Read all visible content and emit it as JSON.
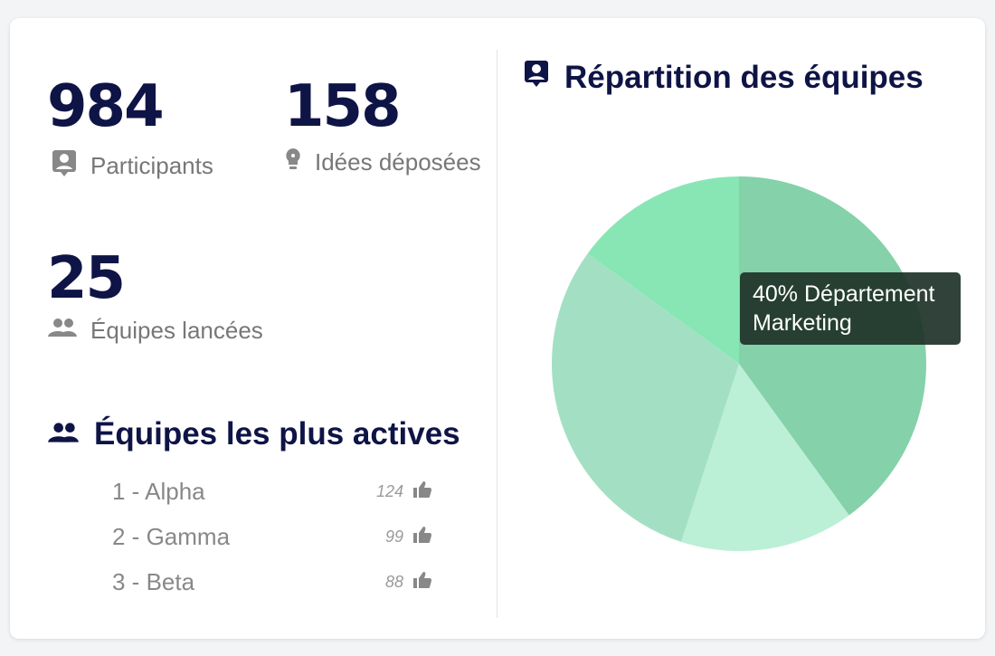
{
  "stats": {
    "participants": {
      "value": "984",
      "label": "Participants",
      "icon": "person-badge-icon"
    },
    "ideas": {
      "value": "158",
      "label": "Idées déposées",
      "icon": "lightbulb-icon"
    },
    "teams": {
      "value": "25",
      "label": "Équipes lancées",
      "icon": "group-icon"
    }
  },
  "active_teams": {
    "title": "Équipes les plus actives",
    "icon": "group-icon",
    "items": [
      {
        "name": "1 - Alpha",
        "votes": "124",
        "icon": "thumb-up-icon"
      },
      {
        "name": "2 - Gamma",
        "votes": "99",
        "icon": "thumb-up-icon"
      },
      {
        "name": "3 - Beta",
        "votes": "88",
        "icon": "thumb-up-icon"
      }
    ]
  },
  "distribution": {
    "title": "Répartition des équipes",
    "icon": "person-badge-icon",
    "tooltip": "40% Département Marketing"
  },
  "chart_data": {
    "type": "pie",
    "values": [
      40,
      15,
      30,
      15
    ],
    "categories": [
      "Département Marketing",
      "",
      "",
      ""
    ],
    "colors": [
      "#85d1aa",
      "#bbefd6",
      "#a3e0c3",
      "#88e6b5"
    ]
  }
}
